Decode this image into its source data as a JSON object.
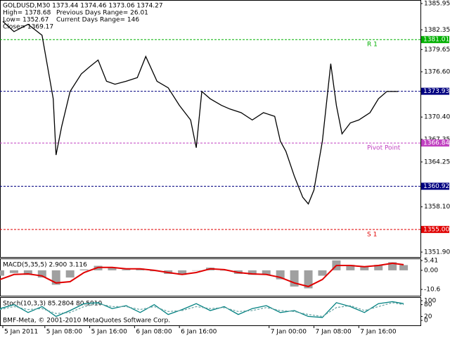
{
  "chart_data": [
    {
      "type": "line",
      "title": "GOLDUSD,M30  1373.44 1374.46 1373.06 1374.27",
      "annotations": [
        "High= 1378.68",
        "Previous Days Range= 26.01",
        "Low= 1352.67",
        "Current Days Range= 146",
        "Close= 1369.17"
      ],
      "x": [
        1,
        5,
        10,
        15,
        19,
        20,
        22,
        25,
        29,
        32,
        35,
        38,
        41,
        45,
        49,
        52,
        56,
        60,
        64,
        68,
        70,
        72,
        75,
        79,
        82,
        86,
        90,
        94,
        98,
        100,
        102,
        105,
        108,
        110,
        112,
        115,
        118,
        120,
        122,
        125,
        128,
        130,
        132,
        135,
        138,
        140,
        142
      ],
      "series": [
        {
          "color": "#000000",
          "values": [
            1383.5,
            1382.1,
            1383.1,
            1381.6,
            1372.9,
            1365.2,
            1369.1,
            1373.9,
            1376.3,
            1377.3,
            1378.2,
            1375.3,
            1374.9,
            1375.3,
            1375.8,
            1378.7,
            1375.3,
            1374.4,
            1372.0,
            1370.0,
            1366.2,
            1373.9,
            1372.9,
            1372.0,
            1371.5,
            1371.0,
            1370.0,
            1371.0,
            1370.5,
            1367.1,
            1365.7,
            1362.3,
            1359.4,
            1358.5,
            1360.4,
            1367.1,
            1377.7,
            1372.0,
            1368.1,
            1369.6,
            1370.0,
            1370.5,
            1371.0,
            1372.9,
            1373.9,
            1373.9,
            1373.9
          ]
        }
      ],
      "xlim": [
        0,
        150
      ],
      "xticks": [
        {
          "value": 1,
          "label": "5 Jan 2011"
        },
        {
          "value": 16,
          "label": "5 Jan 08:00"
        },
        {
          "value": 32,
          "label": "5 Jan 16:00"
        },
        {
          "value": 48,
          "label": "6 Jan 08:00"
        },
        {
          "value": 64,
          "label": "6 Jan 16:00"
        },
        {
          "value": 96,
          "label": "7 Jan 00:00"
        },
        {
          "value": 112,
          "label": "7 Jan 08:00"
        },
        {
          "value": 128,
          "label": "7 Jan 16:00"
        }
      ],
      "ylim": [
        1351.9,
        1385.95
      ],
      "yticks": [
        {
          "value": 1385.95,
          "label": "1385.95"
        },
        {
          "value": 1382.35,
          "label": "1382.35"
        },
        {
          "value": 1379.65,
          "label": "1379.65"
        },
        {
          "value": 1376.6,
          "label": "1376.60"
        },
        {
          "value": 1370.4,
          "label": "1370.40"
        },
        {
          "value": 1367.35,
          "label": "1367.35"
        },
        {
          "value": 1364.25,
          "label": "1364.25"
        },
        {
          "value": 1358.1,
          "label": "1358.10"
        },
        {
          "value": 1351.9,
          "label": "1351.90"
        }
      ],
      "levels": {
        "values": [
          1381.01,
          1373.93,
          1366.84,
          1360.92,
          1355.0
        ],
        "value_labels": [
          "1381.01",
          "1373.93",
          "1366.84",
          "1360.92",
          "1355.00"
        ],
        "names": [
          "R 1",
          null,
          "Pivot Point",
          null,
          "S 1"
        ],
        "colors": [
          "#00b000",
          "#000080",
          "#c040c0",
          "#000080",
          "#e00000"
        ]
      }
    },
    {
      "type": "bar",
      "title": "MACD(5,35,5) 2.900 3.116",
      "x": [
        0,
        5,
        10,
        15,
        20,
        25,
        30,
        35,
        40,
        45,
        50,
        55,
        60,
        65,
        70,
        75,
        80,
        85,
        90,
        95,
        100,
        105,
        110,
        115,
        120,
        125,
        130,
        135,
        140,
        144
      ],
      "series": [
        {
          "color": "#a0a0a0",
          "values": [
            -3,
            -1.5,
            -2.5,
            -4,
            -8,
            -4,
            0.5,
            2.5,
            1.5,
            0.5,
            1,
            -0.5,
            -2,
            -2.5,
            0,
            1.5,
            0,
            -2,
            -2.5,
            -2.5,
            -5,
            -9,
            -10,
            -3,
            5.5,
            3,
            2,
            3,
            4.5,
            2.9
          ]
        },
        {
          "color": "#e00000",
          "style": "line",
          "values": [
            -5.1,
            -2.3,
            -2.0,
            -3.1,
            -7.0,
            -6.3,
            -1.2,
            1.6,
            1.6,
            0.8,
            0.8,
            0.0,
            -1.2,
            -2.3,
            -1.2,
            0.8,
            0.4,
            -1.2,
            -2.0,
            -2.3,
            -3.9,
            -7.0,
            -9.0,
            -5.1,
            2.7,
            2.7,
            2.0,
            2.7,
            3.9,
            3.1
          ]
        }
      ],
      "ylim": [
        -14.1,
        6.2
      ],
      "yticks": [
        5.41,
        {
          "value": 0,
          "label": "0.00"
        },
        -10.6
      ]
    },
    {
      "type": "line",
      "title": "Stoch(10,3,3) 85.2804 80.5910",
      "x": [
        0,
        5,
        10,
        15,
        20,
        25,
        30,
        35,
        40,
        45,
        50,
        55,
        60,
        65,
        70,
        75,
        80,
        85,
        90,
        95,
        100,
        105,
        110,
        115,
        120,
        125,
        130,
        135,
        140,
        144
      ],
      "series": [
        {
          "color": "#008080",
          "values": [
            60,
            80,
            40,
            70,
            20,
            50,
            85,
            90,
            60,
            75,
            40,
            80,
            30,
            55,
            85,
            50,
            70,
            30,
            60,
            75,
            40,
            50,
            20,
            15,
            90,
            70,
            40,
            85,
            95,
            85
          ]
        },
        {
          "color": "#6fa8a8",
          "style": "dashed",
          "values": [
            55,
            70,
            55,
            60,
            35,
            40,
            70,
            85,
            70,
            70,
            55,
            70,
            45,
            50,
            70,
            60,
            65,
            45,
            50,
            65,
            50,
            45,
            30,
            20,
            65,
            75,
            50,
            70,
            90,
            80
          ]
        }
      ],
      "ylim": [
        -25,
        118
      ],
      "yticks": [
        100,
        80,
        20,
        0
      ],
      "footer": "BMF-Meta, © 2001-2010 MetaQuotes Software Corp."
    }
  ]
}
